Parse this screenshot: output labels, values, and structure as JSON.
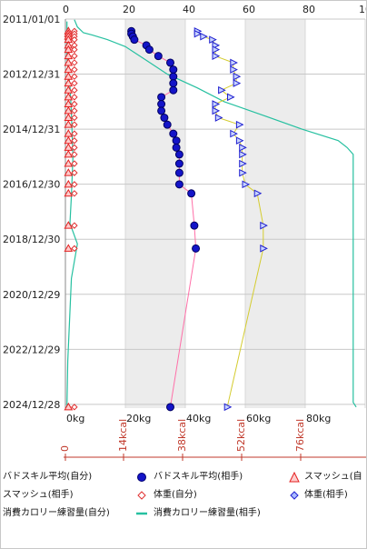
{
  "chart_data": {
    "type": "scatter",
    "date_axis": {
      "tick_labels": [
        "2011/01/01",
        "2012/12/31",
        "2014/12/31",
        "2016/12/30",
        "2018/12/30",
        "2020/12/29",
        "2022/12/29",
        "2024/12/28"
      ],
      "range": [
        "2011/01/01",
        "2025/02/15"
      ]
    },
    "weight_axis": {
      "range": [
        0,
        100
      ],
      "top_tick_labels": [
        "0",
        "20",
        "40",
        "60",
        "80",
        "10"
      ],
      "bottom_tick_labels": [
        "0kg",
        "20kg",
        "40kg",
        "60kg",
        "80kg"
      ],
      "shaded_bands": [
        [
          20,
          40
        ],
        [
          60,
          80
        ]
      ]
    },
    "kcal_axis": {
      "tick_labels": [
        "0",
        "14kcal",
        "38kcal",
        "52kcal",
        "76kcal"
      ]
    },
    "series": [
      {
        "name": "バドスキル平均(自分)",
        "color": "#ff6fa8",
        "marker": "none",
        "points": [
          [
            "2011/06/10",
            22
          ],
          [
            "2011/07/15",
            22
          ],
          [
            "2011/08/20",
            22.5
          ],
          [
            "2011/10/01",
            23
          ],
          [
            "2011/12/15",
            27
          ],
          [
            "2012/02/10",
            28
          ],
          [
            "2012/05/05",
            31
          ],
          [
            "2012/08/01",
            35
          ],
          [
            "2012/11/01",
            36
          ],
          [
            "2013/02/01",
            36
          ],
          [
            "2013/05/01",
            36
          ],
          [
            "2013/08/01",
            36
          ],
          [
            "2013/11/01",
            32
          ],
          [
            "2014/02/01",
            32
          ],
          [
            "2014/05/01",
            32
          ],
          [
            "2014/08/01",
            33
          ],
          [
            "2014/11/01",
            34
          ],
          [
            "2015/03/01",
            36
          ],
          [
            "2015/06/01",
            37
          ],
          [
            "2015/09/01",
            37
          ],
          [
            "2015/12/01",
            38
          ],
          [
            "2016/04/01",
            38
          ],
          [
            "2016/08/01",
            38
          ],
          [
            "2017/01/01",
            38
          ],
          [
            "2017/05/01",
            42
          ],
          [
            "2018/07/01",
            43
          ],
          [
            "2019/05/01",
            43.5
          ],
          [
            "2025/02/01",
            35
          ]
        ]
      },
      {
        "name": "バドスキル平均(相手)",
        "color": "#1414c8",
        "marker": "circle",
        "points": [
          [
            "2011/06/10",
            22
          ],
          [
            "2011/07/15",
            22
          ],
          [
            "2011/08/20",
            22.5
          ],
          [
            "2011/10/01",
            23
          ],
          [
            "2011/12/15",
            27
          ],
          [
            "2012/02/10",
            28
          ],
          [
            "2012/05/05",
            31
          ],
          [
            "2012/08/01",
            35
          ],
          [
            "2012/11/01",
            36
          ],
          [
            "2013/02/01",
            36
          ],
          [
            "2013/05/01",
            36
          ],
          [
            "2013/08/01",
            36
          ],
          [
            "2013/11/01",
            32
          ],
          [
            "2014/02/01",
            32
          ],
          [
            "2014/05/01",
            32
          ],
          [
            "2014/08/01",
            33
          ],
          [
            "2014/11/01",
            34
          ],
          [
            "2015/03/01",
            36
          ],
          [
            "2015/06/01",
            37
          ],
          [
            "2015/09/01",
            37
          ],
          [
            "2015/12/01",
            38
          ],
          [
            "2016/04/01",
            38
          ],
          [
            "2016/08/01",
            38
          ],
          [
            "2017/01/01",
            38
          ],
          [
            "2017/05/01",
            42
          ],
          [
            "2018/07/01",
            43
          ],
          [
            "2019/05/01",
            43.5
          ],
          [
            "2025/02/01",
            35
          ]
        ]
      },
      {
        "name": "スマッシュ(自分)",
        "color": "#e32020",
        "marker": "triangle-up",
        "points": [
          [
            "2011/06/10",
            1
          ],
          [
            "2011/07/15",
            1
          ],
          [
            "2011/08/20",
            1
          ],
          [
            "2011/10/01",
            1
          ],
          [
            "2011/12/15",
            1
          ],
          [
            "2012/02/10",
            1
          ],
          [
            "2012/05/05",
            1
          ],
          [
            "2012/08/01",
            1
          ],
          [
            "2012/11/01",
            1
          ],
          [
            "2013/02/01",
            1
          ],
          [
            "2013/05/01",
            1
          ],
          [
            "2013/08/01",
            1
          ],
          [
            "2013/11/01",
            1
          ],
          [
            "2014/02/01",
            1
          ],
          [
            "2014/05/01",
            1
          ],
          [
            "2014/08/01",
            1
          ],
          [
            "2014/11/01",
            1
          ],
          [
            "2015/03/01",
            1
          ],
          [
            "2015/06/01",
            1
          ],
          [
            "2015/09/01",
            1
          ],
          [
            "2015/12/01",
            1
          ],
          [
            "2016/04/01",
            1
          ],
          [
            "2016/08/01",
            1
          ],
          [
            "2017/01/01",
            1
          ],
          [
            "2017/05/01",
            1
          ],
          [
            "2018/07/01",
            1
          ],
          [
            "2019/05/01",
            1
          ],
          [
            "2025/02/01",
            1
          ]
        ]
      },
      {
        "name": "スマッシュ(相手)",
        "color": "#d4cc30",
        "marker": "none",
        "points": [
          [
            "2011/06/10",
            44
          ],
          [
            "2011/07/15",
            44
          ],
          [
            "2011/08/20",
            46
          ],
          [
            "2011/10/01",
            49
          ],
          [
            "2011/12/15",
            50
          ],
          [
            "2012/02/10",
            50
          ],
          [
            "2012/05/05",
            50
          ],
          [
            "2012/08/01",
            56
          ],
          [
            "2012/11/01",
            56
          ],
          [
            "2013/02/01",
            57
          ],
          [
            "2013/05/01",
            57
          ],
          [
            "2013/08/01",
            52
          ],
          [
            "2013/11/01",
            55
          ],
          [
            "2014/02/01",
            50
          ],
          [
            "2014/05/01",
            50
          ],
          [
            "2014/08/01",
            51
          ],
          [
            "2014/11/01",
            58
          ],
          [
            "2015/03/01",
            56
          ],
          [
            "2015/06/01",
            58
          ],
          [
            "2015/09/01",
            59
          ],
          [
            "2015/12/01",
            59
          ],
          [
            "2016/04/01",
            59
          ],
          [
            "2016/08/01",
            59
          ],
          [
            "2017/01/01",
            60
          ],
          [
            "2017/05/01",
            64
          ],
          [
            "2018/07/01",
            66
          ],
          [
            "2019/05/01",
            66
          ],
          [
            "2025/02/01",
            54
          ]
        ]
      },
      {
        "name": "体重(自分)",
        "color": "#e03030",
        "marker": "diamond-open",
        "points": [
          [
            "2011/06/10",
            3
          ],
          [
            "2011/07/15",
            3
          ],
          [
            "2011/08/20",
            3
          ],
          [
            "2011/10/01",
            3
          ],
          [
            "2011/12/15",
            3
          ],
          [
            "2012/02/10",
            3
          ],
          [
            "2012/05/05",
            3
          ],
          [
            "2012/08/01",
            3
          ],
          [
            "2012/11/01",
            3
          ],
          [
            "2013/02/01",
            3
          ],
          [
            "2013/05/01",
            3
          ],
          [
            "2013/08/01",
            3
          ],
          [
            "2013/11/01",
            3
          ],
          [
            "2014/02/01",
            3
          ],
          [
            "2014/05/01",
            3
          ],
          [
            "2014/08/01",
            3
          ],
          [
            "2014/11/01",
            3
          ],
          [
            "2015/03/01",
            3
          ],
          [
            "2015/06/01",
            3
          ],
          [
            "2015/09/01",
            3
          ],
          [
            "2015/12/01",
            3
          ],
          [
            "2016/04/01",
            3
          ],
          [
            "2016/08/01",
            3
          ],
          [
            "2017/01/01",
            3
          ],
          [
            "2017/05/01",
            3
          ],
          [
            "2018/07/01",
            3
          ],
          [
            "2019/05/01",
            3
          ],
          [
            "2025/02/01",
            3
          ]
        ]
      },
      {
        "name": "体重(相手)",
        "color": "#2020d0",
        "marker": "triangle-right",
        "points": [
          [
            "2011/06/10",
            44
          ],
          [
            "2011/07/15",
            44
          ],
          [
            "2011/08/20",
            46
          ],
          [
            "2011/10/01",
            49
          ],
          [
            "2011/12/15",
            50
          ],
          [
            "2012/02/10",
            50
          ],
          [
            "2012/05/05",
            50
          ],
          [
            "2012/08/01",
            56
          ],
          [
            "2012/11/01",
            56
          ],
          [
            "2013/02/01",
            57
          ],
          [
            "2013/05/01",
            57
          ],
          [
            "2013/08/01",
            52
          ],
          [
            "2013/11/01",
            55
          ],
          [
            "2014/02/01",
            50
          ],
          [
            "2014/05/01",
            50
          ],
          [
            "2014/08/01",
            51
          ],
          [
            "2014/11/01",
            58
          ],
          [
            "2015/03/01",
            56
          ],
          [
            "2015/06/01",
            58
          ],
          [
            "2015/09/01",
            59
          ],
          [
            "2015/12/01",
            59
          ],
          [
            "2016/04/01",
            59
          ],
          [
            "2016/08/01",
            59
          ],
          [
            "2017/01/01",
            60
          ],
          [
            "2017/05/01",
            64
          ],
          [
            "2018/07/01",
            66
          ],
          [
            "2019/05/01",
            66
          ],
          [
            "2025/02/01",
            54
          ]
        ]
      },
      {
        "name": "消費カロリー練習量(自分)",
        "color": "#26c0a0",
        "marker": "none",
        "points": [
          [
            "2011/01/10",
            3
          ],
          [
            "2011/04/15",
            4
          ],
          [
            "2011/07/01",
            6
          ],
          [
            "2011/08/01",
            9
          ],
          [
            "2011/10/01",
            14
          ],
          [
            "2012/01/01",
            20
          ],
          [
            "2012/07/01",
            27
          ],
          [
            "2013/01/01",
            34
          ],
          [
            "2013/07/01",
            44
          ],
          [
            "2014/01/01",
            53
          ],
          [
            "2014/07/01",
            66
          ],
          [
            "2015/01/01",
            79
          ],
          [
            "2015/06/01",
            91
          ],
          [
            "2015/09/01",
            94
          ],
          [
            "2015/12/01",
            96
          ],
          [
            "2016/07/01",
            96
          ],
          [
            "2024/12/01",
            96
          ],
          [
            "2025/02/01",
            97
          ]
        ]
      },
      {
        "name": "消費カロリー練習量(相手)",
        "color": "#26c0a0",
        "marker": "none",
        "points": [
          [
            "2011/02/01",
            0.5
          ],
          [
            "2012/06/01",
            0.5
          ],
          [
            "2013/06/01",
            1.5
          ],
          [
            "2014/06/01",
            2
          ],
          [
            "2016/01/01",
            2.5
          ],
          [
            "2017/06/01",
            2
          ],
          [
            "2018/06/01",
            1.5
          ],
          [
            "2019/03/01",
            4
          ],
          [
            "2020/06/01",
            2
          ],
          [
            "2023/06/01",
            0.8
          ],
          [
            "2025/02/01",
            0.5
          ]
        ]
      }
    ]
  },
  "legend": {
    "items": [
      {
        "label": "バドスキル平均(自分)",
        "symbol": "line-pink"
      },
      {
        "label": "バドスキル平均(相手)",
        "symbol": "circle-blue"
      },
      {
        "label": "スマッシュ(自",
        "symbol": "triangle-red"
      },
      {
        "label": "スマッシュ(相手)",
        "symbol": "line-yellow"
      },
      {
        "label": "体重(自分)",
        "symbol": "diamond-red"
      },
      {
        "label": "体重(相手)",
        "symbol": "diamond-blue"
      },
      {
        "label": "消費カロリー練習量(自分)",
        "symbol": "line-green"
      },
      {
        "label": "消費カロリー練習量(相手)",
        "symbol": "line-green"
      }
    ]
  }
}
